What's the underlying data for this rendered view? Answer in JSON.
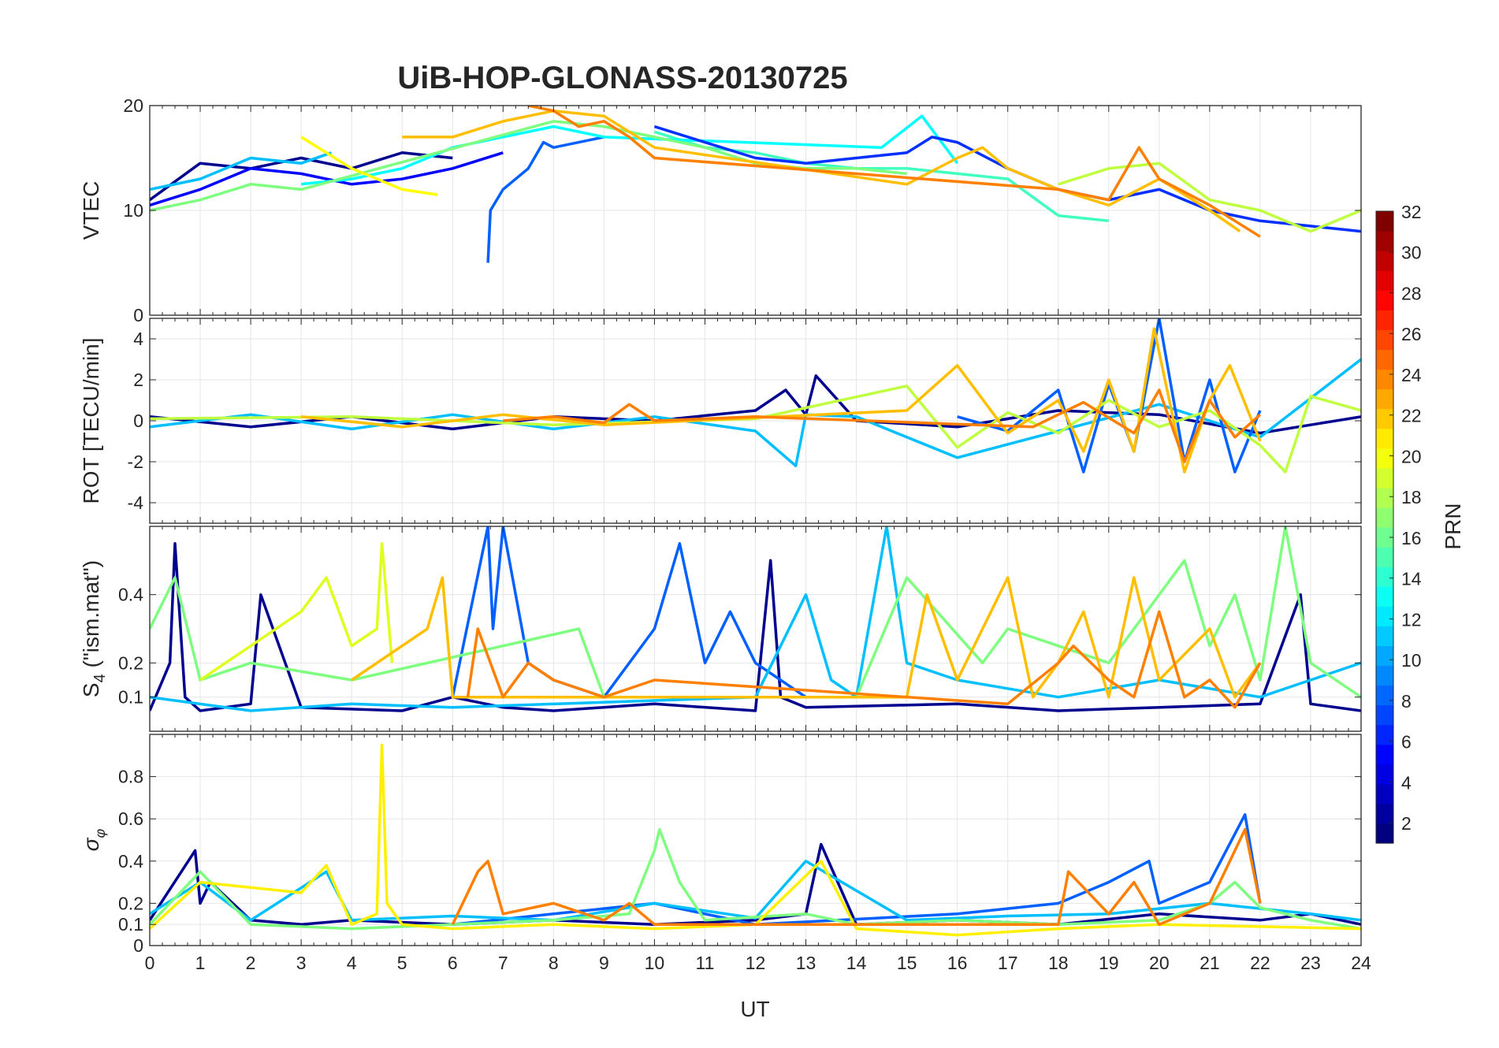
{
  "figure": {
    "title": "UiB-HOP-GLONASS-20130725",
    "xlabel": "UT",
    "colorbar_label": "PRN"
  },
  "chart_data": [
    {
      "type": "line",
      "name": "vtec",
      "ylabel": "VTEC",
      "xlim": [
        0,
        24
      ],
      "ylim": [
        0,
        20
      ],
      "yticks": [
        0,
        10,
        20
      ],
      "xticks": [
        0,
        1,
        2,
        3,
        4,
        5,
        6,
        7,
        8,
        9,
        10,
        11,
        12,
        13,
        14,
        15,
        16,
        17,
        18,
        19,
        20,
        21,
        22,
        23,
        24
      ],
      "grid": true,
      "series": [
        {
          "color": "#00008F",
          "x": [
            0,
            1,
            2,
            3,
            4,
            5,
            6
          ],
          "y": [
            11,
            14.5,
            14,
            15,
            14,
            15.5,
            15
          ]
        },
        {
          "color": "#0000FF",
          "x": [
            0,
            1,
            2,
            3,
            4,
            5,
            6,
            7
          ],
          "y": [
            10.5,
            12,
            14,
            13.5,
            12.5,
            13,
            14,
            15.5
          ]
        },
        {
          "color": "#0060FF",
          "x": [
            6.7,
            6.75,
            7,
            7.5,
            7.8,
            8,
            9
          ],
          "y": [
            5,
            10,
            12,
            14,
            16.5,
            16,
            17
          ]
        },
        {
          "color": "#00BFFF",
          "x": [
            0,
            1,
            2,
            3,
            3.6
          ],
          "y": [
            12,
            13,
            15,
            14.5,
            15.5
          ]
        },
        {
          "color": "#40FFBF",
          "x": [
            10,
            11,
            12,
            13,
            14,
            15,
            16,
            17,
            18,
            19
          ],
          "y": [
            17.5,
            16,
            15.5,
            14.5,
            14,
            14,
            13.5,
            13,
            9.5,
            9
          ]
        },
        {
          "color": "#00FFFF",
          "x": [
            3,
            4,
            5,
            6,
            7,
            8,
            9,
            14.5,
            15.3,
            16
          ],
          "y": [
            12.5,
            13,
            14,
            16,
            17,
            18,
            17,
            16,
            19,
            14.5
          ]
        },
        {
          "color": "#0030FF",
          "x": [
            10,
            11,
            12,
            13,
            14,
            15,
            15.5,
            16,
            17,
            18,
            19,
            20,
            21,
            22,
            23,
            24
          ],
          "y": [
            18,
            16.5,
            15,
            14.5,
            15,
            15.5,
            17,
            16.5,
            14,
            12,
            11,
            12,
            10,
            9,
            8.5,
            8
          ]
        },
        {
          "color": "#7FFF7F",
          "x": [
            0,
            1,
            2,
            3,
            8,
            9,
            10,
            11,
            12,
            13,
            14,
            15
          ],
          "y": [
            10,
            11,
            12.5,
            12,
            18.5,
            18,
            17,
            16,
            14.5,
            14,
            14,
            13.5
          ]
        },
        {
          "color": "#BFFF40",
          "x": [
            18,
            19,
            20,
            21,
            22,
            23,
            24
          ],
          "y": [
            12.5,
            14,
            14.5,
            11,
            10,
            8,
            10
          ]
        },
        {
          "color": "#FFFF00",
          "x": [
            3,
            4,
            5,
            5.7
          ],
          "y": [
            17,
            14,
            12,
            11.5
          ]
        },
        {
          "color": "#FFBF00",
          "x": [
            5,
            6,
            7,
            8,
            9,
            10,
            15,
            16,
            16.5,
            17,
            18,
            19,
            20,
            21,
            21.6
          ],
          "y": [
            17,
            17,
            18.5,
            19.5,
            19,
            16,
            12.5,
            15,
            16,
            14,
            12,
            10.5,
            13,
            10,
            8
          ]
        },
        {
          "color": "#FF8000",
          "x": [
            7.5,
            8,
            8.5,
            9,
            9.5,
            10,
            18,
            19,
            19.6,
            20,
            21,
            22
          ],
          "y": [
            20,
            19.5,
            18,
            18.5,
            17,
            15,
            12,
            11,
            16,
            13,
            10.5,
            7.5
          ]
        }
      ]
    },
    {
      "type": "line",
      "name": "rot",
      "ylabel": "ROT [TECU/min]",
      "xlim": [
        0,
        24
      ],
      "ylim": [
        -5,
        5
      ],
      "yticks": [
        -4,
        -2,
        0,
        2,
        4
      ],
      "grid": true,
      "series": [
        {
          "color": "#00008F",
          "x": [
            0,
            2,
            4,
            6,
            8,
            10,
            12,
            12.6,
            13,
            13.2,
            14,
            16,
            18,
            20,
            22,
            24
          ],
          "y": [
            0.2,
            -0.3,
            0.2,
            -0.4,
            0.2,
            0,
            0.5,
            1.5,
            0.3,
            2.2,
            0,
            -0.3,
            0.5,
            0.3,
            -0.6,
            0.2
          ]
        },
        {
          "color": "#00BFFF",
          "x": [
            0,
            2,
            4,
            6,
            8,
            10,
            12,
            12.8,
            13,
            14,
            16,
            18,
            20,
            22,
            24
          ],
          "y": [
            -0.3,
            0.3,
            -0.4,
            0.3,
            -0.4,
            0.2,
            -0.5,
            -2.2,
            0.3,
            0.2,
            -1.8,
            -0.5,
            0.8,
            -0.8,
            3
          ]
        },
        {
          "color": "#0060FF",
          "x": [
            16,
            17,
            18,
            18.5,
            19,
            19.5,
            20,
            20.5,
            21,
            21.5,
            22
          ],
          "y": [
            0.2,
            -0.5,
            1.5,
            -2.5,
            1.8,
            -1.5,
            5,
            -2,
            2,
            -2.5,
            0.5
          ]
        },
        {
          "color": "#BFFF40",
          "x": [
            0,
            4,
            8,
            12,
            15,
            16,
            17,
            18,
            19,
            20,
            21,
            22,
            22.5,
            23,
            24
          ],
          "y": [
            0.1,
            0.2,
            -0.2,
            0.1,
            1.7,
            -1.3,
            0.4,
            -0.6,
            1,
            -0.3,
            0.5,
            -1.2,
            -2.5,
            1.2,
            0.5
          ]
        },
        {
          "color": "#FFBF00",
          "x": [
            3,
            5,
            7,
            9,
            15,
            16,
            17,
            18,
            18.5,
            19,
            19.5,
            19.9,
            20.5,
            21,
            21.4,
            22
          ],
          "y": [
            0.2,
            -0.3,
            0.3,
            -0.2,
            0.5,
            2.7,
            -0.6,
            1,
            -1.5,
            2,
            -1.5,
            4.5,
            -2.5,
            1,
            2.7,
            -1
          ]
        },
        {
          "color": "#FF8000",
          "x": [
            7,
            8,
            9,
            9.5,
            10,
            12,
            17.5,
            18.5,
            19.5,
            20,
            20.5,
            21,
            21.5,
            22
          ],
          "y": [
            0,
            0.2,
            -0.1,
            0.8,
            0,
            0.2,
            -0.3,
            0.9,
            -0.6,
            1.5,
            -2,
            1,
            -0.8,
            0.3
          ]
        }
      ]
    },
    {
      "type": "line",
      "name": "s4",
      "ylabel": "S4 (\"ism.mat\")",
      "xlim": [
        0,
        24
      ],
      "ylim": [
        0,
        0.6
      ],
      "yticks": [
        0.1,
        0.2,
        0.4
      ],
      "grid": true,
      "series": [
        {
          "color": "#00008F",
          "x": [
            0,
            0.4,
            0.5,
            0.7,
            1,
            2,
            2.2,
            3,
            5,
            6,
            7,
            8,
            10,
            12,
            12.3,
            12.5,
            13,
            16,
            18,
            20,
            22,
            22.8,
            23,
            24
          ],
          "y": [
            0.06,
            0.2,
            0.55,
            0.1,
            0.06,
            0.08,
            0.4,
            0.07,
            0.06,
            0.1,
            0.07,
            0.06,
            0.08,
            0.06,
            0.5,
            0.1,
            0.07,
            0.08,
            0.06,
            0.07,
            0.08,
            0.4,
            0.08,
            0.06
          ]
        },
        {
          "color": "#0060FF",
          "x": [
            6,
            6.7,
            6.8,
            7,
            7.5,
            8,
            9,
            10,
            10.5,
            11,
            11.5,
            12,
            13
          ],
          "y": [
            0.1,
            0.6,
            0.3,
            0.6,
            0.2,
            0.15,
            0.1,
            0.3,
            0.55,
            0.2,
            0.35,
            0.2,
            0.1
          ]
        },
        {
          "color": "#00BFFF",
          "x": [
            0,
            2,
            4,
            6,
            12,
            13,
            13.5,
            14,
            14.6,
            15,
            16,
            18,
            20,
            22,
            24
          ],
          "y": [
            0.1,
            0.06,
            0.08,
            0.07,
            0.1,
            0.4,
            0.15,
            0.1,
            0.6,
            0.2,
            0.15,
            0.1,
            0.15,
            0.1,
            0.2
          ]
        },
        {
          "color": "#7FFF7F",
          "x": [
            0,
            0.5,
            1,
            2,
            4,
            8.5,
            9,
            14,
            15,
            16.5,
            17,
            18,
            19,
            20,
            20.5,
            21,
            21.5,
            22,
            22.5,
            23,
            24
          ],
          "y": [
            0.3,
            0.45,
            0.15,
            0.2,
            0.15,
            0.3,
            0.1,
            0.1,
            0.45,
            0.2,
            0.3,
            0.25,
            0.2,
            0.4,
            0.5,
            0.25,
            0.4,
            0.15,
            0.6,
            0.2,
            0.1
          ]
        },
        {
          "color": "#DFFF20",
          "x": [
            1,
            2,
            3,
            3.5,
            4,
            4.5,
            4.6,
            4.8
          ],
          "y": [
            0.15,
            0.25,
            0.35,
            0.45,
            0.25,
            0.3,
            0.55,
            0.2
          ]
        },
        {
          "color": "#FFBF00",
          "x": [
            4,
            5,
            5.5,
            5.8,
            6,
            15,
            15.4,
            16,
            16.5,
            17,
            17.5,
            18,
            18.5,
            19,
            19.5,
            20,
            21,
            21.5,
            22
          ],
          "y": [
            0.15,
            0.25,
            0.3,
            0.45,
            0.1,
            0.1,
            0.4,
            0.15,
            0.3,
            0.45,
            0.1,
            0.2,
            0.35,
            0.1,
            0.45,
            0.15,
            0.3,
            0.1,
            0.2
          ]
        },
        {
          "color": "#FF8000",
          "x": [
            6.3,
            6.5,
            7,
            7.5,
            8,
            9,
            10,
            17,
            18,
            18.3,
            19,
            19.5,
            20,
            20.5,
            21,
            21.5,
            22
          ],
          "y": [
            0.1,
            0.3,
            0.1,
            0.2,
            0.15,
            0.1,
            0.15,
            0.08,
            0.2,
            0.25,
            0.15,
            0.1,
            0.35,
            0.1,
            0.15,
            0.07,
            0.2
          ]
        }
      ]
    },
    {
      "type": "line",
      "name": "sigma_phi",
      "ylabel": "σφ",
      "xlim": [
        0,
        24
      ],
      "ylim": [
        0,
        1
      ],
      "yticks": [
        0,
        0.1,
        0.2,
        0.4,
        0.6,
        0.8
      ],
      "grid": true,
      "series": [
        {
          "color": "#00008F",
          "x": [
            0,
            0.9,
            1,
            1.2,
            2,
            3,
            4,
            6,
            8,
            10,
            12,
            13,
            13.3,
            14,
            16,
            18,
            20,
            22,
            23,
            24
          ],
          "y": [
            0.12,
            0.45,
            0.2,
            0.3,
            0.12,
            0.1,
            0.12,
            0.1,
            0.12,
            0.1,
            0.12,
            0.15,
            0.48,
            0.1,
            0.12,
            0.1,
            0.15,
            0.12,
            0.15,
            0.1
          ]
        },
        {
          "color": "#0060FF",
          "x": [
            6,
            8,
            10,
            12,
            16,
            18,
            19,
            19.8,
            20,
            21,
            21.7,
            22
          ],
          "y": [
            0.1,
            0.15,
            0.2,
            0.1,
            0.15,
            0.2,
            0.3,
            0.4,
            0.2,
            0.3,
            0.62,
            0.2
          ]
        },
        {
          "color": "#00BFFF",
          "x": [
            0,
            1,
            2,
            3.5,
            4,
            6,
            8,
            10,
            12,
            13,
            15,
            17,
            19,
            21,
            23,
            24
          ],
          "y": [
            0.15,
            0.3,
            0.12,
            0.35,
            0.12,
            0.14,
            0.12,
            0.2,
            0.13,
            0.4,
            0.12,
            0.14,
            0.15,
            0.2,
            0.15,
            0.12
          ]
        },
        {
          "color": "#7FFF7F",
          "x": [
            0,
            1,
            2,
            4,
            8,
            9.5,
            10,
            10.1,
            10.5,
            11,
            13,
            14,
            16,
            18,
            20,
            21,
            21.5,
            22,
            23,
            24
          ],
          "y": [
            0.1,
            0.35,
            0.1,
            0.08,
            0.12,
            0.15,
            0.45,
            0.55,
            0.3,
            0.12,
            0.15,
            0.1,
            0.12,
            0.1,
            0.12,
            0.2,
            0.3,
            0.18,
            0.12,
            0.08
          ]
        },
        {
          "color": "#FFEF00",
          "x": [
            0,
            1,
            3,
            3.5,
            4,
            4.5,
            4.6,
            4.7,
            5,
            6,
            8,
            10,
            12,
            13.3,
            14,
            16,
            18,
            20,
            24
          ],
          "y": [
            0.08,
            0.3,
            0.25,
            0.38,
            0.1,
            0.15,
            0.95,
            0.2,
            0.1,
            0.08,
            0.1,
            0.08,
            0.1,
            0.4,
            0.08,
            0.05,
            0.08,
            0.1,
            0.08
          ]
        },
        {
          "color": "#FF8000",
          "x": [
            6,
            6.5,
            6.7,
            7,
            8,
            9,
            9.5,
            10,
            18,
            18.2,
            19,
            19.5,
            20,
            21,
            21.7,
            22
          ],
          "y": [
            0.1,
            0.35,
            0.4,
            0.15,
            0.2,
            0.12,
            0.2,
            0.1,
            0.1,
            0.35,
            0.15,
            0.3,
            0.1,
            0.2,
            0.55,
            0.2
          ]
        }
      ]
    }
  ],
  "colorbar": {
    "label": "PRN",
    "range": [
      1,
      32
    ],
    "ticks": [
      "2",
      "4",
      "6",
      "8",
      "10",
      "12",
      "14",
      "16",
      "18",
      "20",
      "22",
      "24",
      "26",
      "28",
      "30",
      "32"
    ],
    "colormap": "jet"
  }
}
